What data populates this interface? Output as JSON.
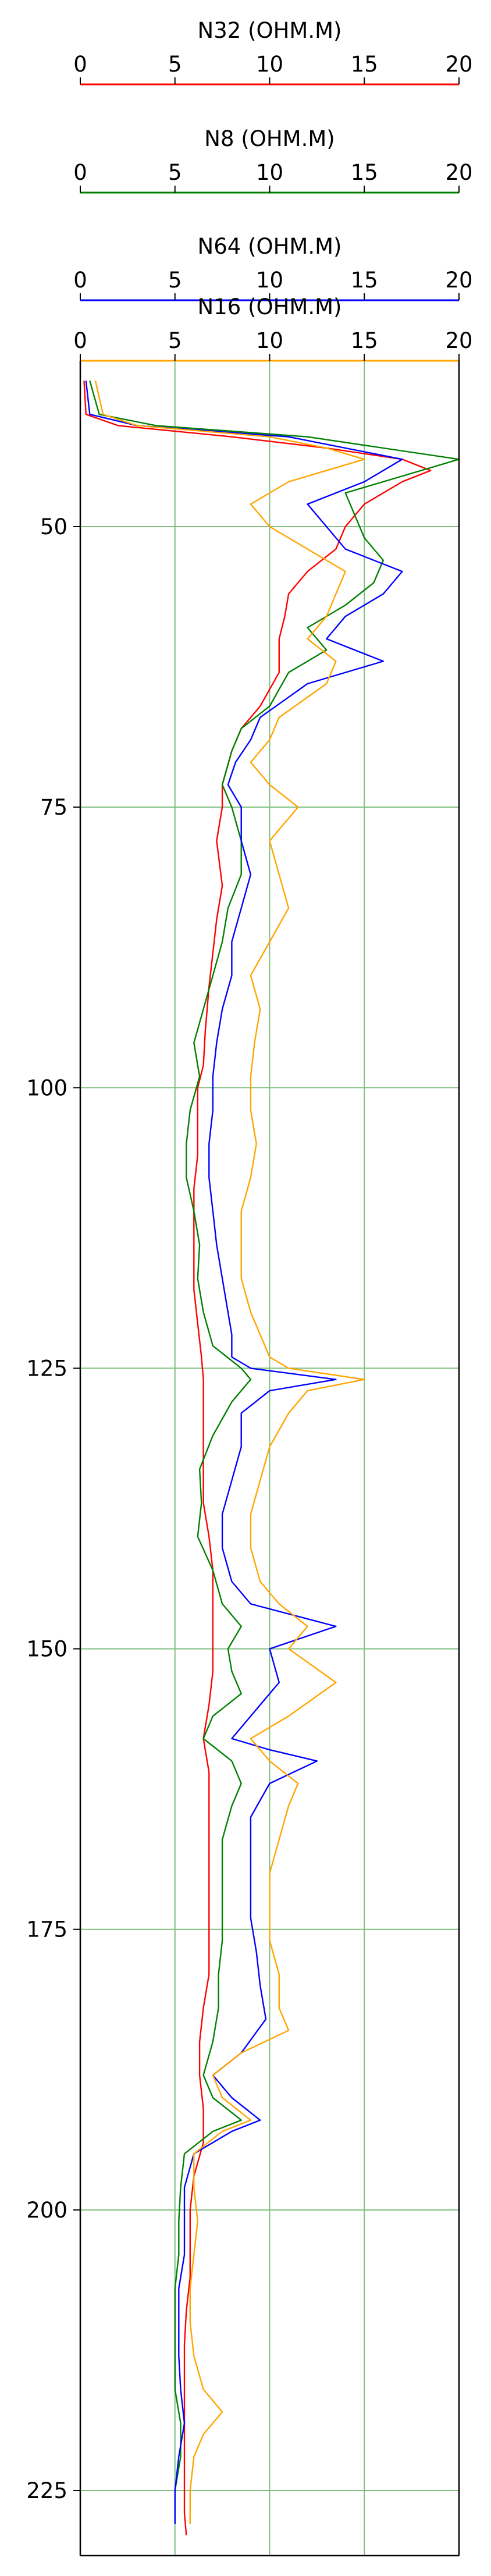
{
  "chart_data": {
    "type": "line",
    "orientation": "vertical-depth",
    "y_axis": {
      "ticks": [
        50,
        75,
        100,
        125,
        150,
        175,
        200,
        225
      ],
      "ylim": [
        36,
        230
      ],
      "inverted": true
    },
    "x_axis": {
      "xlim": [
        0,
        20
      ],
      "ticks": [
        0,
        5,
        10,
        15,
        20
      ]
    },
    "grid": true,
    "grid_color": "#7fbf7f",
    "series": [
      {
        "name": "N32 (OHM.M)",
        "color": "#ff0000",
        "points": [
          [
            0.2,
            37
          ],
          [
            0.3,
            40
          ],
          [
            2,
            41
          ],
          [
            8,
            42
          ],
          [
            13,
            43
          ],
          [
            17,
            44
          ],
          [
            18.5,
            45
          ],
          [
            17,
            46
          ],
          [
            15,
            48
          ],
          [
            14,
            50
          ],
          [
            13.5,
            52
          ],
          [
            12,
            54
          ],
          [
            11,
            56
          ],
          [
            10.8,
            58
          ],
          [
            10.5,
            60
          ],
          [
            10.5,
            63
          ],
          [
            9.5,
            66
          ],
          [
            8.5,
            68
          ],
          [
            8,
            70
          ],
          [
            7.5,
            73
          ],
          [
            7.5,
            75
          ],
          [
            7.2,
            78
          ],
          [
            7.5,
            82
          ],
          [
            7.2,
            85
          ],
          [
            7,
            88
          ],
          [
            6.8,
            91
          ],
          [
            6.6,
            95
          ],
          [
            6.5,
            98
          ],
          [
            6.2,
            100
          ],
          [
            6.2,
            103
          ],
          [
            6.2,
            106
          ],
          [
            6,
            109
          ],
          [
            6,
            112
          ],
          [
            6,
            115
          ],
          [
            6,
            118
          ],
          [
            6.2,
            121
          ],
          [
            6.4,
            124
          ],
          [
            6.5,
            126
          ],
          [
            6.5,
            128
          ],
          [
            6.5,
            131
          ],
          [
            6.5,
            134
          ],
          [
            6.5,
            137
          ],
          [
            6.8,
            140
          ],
          [
            7,
            143
          ],
          [
            7,
            146
          ],
          [
            7,
            149
          ],
          [
            7,
            152
          ],
          [
            6.8,
            155
          ],
          [
            6.5,
            158
          ],
          [
            6.8,
            161
          ],
          [
            6.8,
            164
          ],
          [
            6.8,
            167
          ],
          [
            6.8,
            170
          ],
          [
            6.8,
            173
          ],
          [
            6.8,
            176
          ],
          [
            6.8,
            179
          ],
          [
            6.5,
            182
          ],
          [
            6.3,
            185
          ],
          [
            6.3,
            188
          ],
          [
            6.5,
            191
          ],
          [
            6.5,
            194
          ],
          [
            6,
            197
          ],
          [
            5.8,
            200
          ],
          [
            5.8,
            203
          ],
          [
            5.8,
            206
          ],
          [
            5.6,
            209
          ],
          [
            5.5,
            212
          ],
          [
            5.5,
            215
          ],
          [
            5.5,
            218
          ],
          [
            5.5,
            221
          ],
          [
            5.5,
            224
          ],
          [
            5.5,
            227
          ],
          [
            5.6,
            229
          ]
        ]
      },
      {
        "name": "N8 (OHM.M)",
        "color": "#008000",
        "points": [
          [
            0.5,
            37
          ],
          [
            1,
            40
          ],
          [
            4,
            41
          ],
          [
            12,
            42
          ],
          [
            16,
            43
          ],
          [
            20,
            44
          ],
          [
            18,
            45
          ],
          [
            14,
            47
          ],
          [
            14.5,
            49
          ],
          [
            15,
            51
          ],
          [
            16,
            53
          ],
          [
            15.5,
            55
          ],
          [
            14,
            57
          ],
          [
            12,
            59
          ],
          [
            13,
            61
          ],
          [
            11,
            63
          ],
          [
            10,
            66
          ],
          [
            8.5,
            68
          ],
          [
            8,
            70
          ],
          [
            7.5,
            73
          ],
          [
            8,
            75
          ],
          [
            8.5,
            78
          ],
          [
            8.5,
            81
          ],
          [
            7.8,
            84
          ],
          [
            7.5,
            87
          ],
          [
            7,
            90
          ],
          [
            6.5,
            93
          ],
          [
            6,
            96
          ],
          [
            6.3,
            99
          ],
          [
            5.8,
            102
          ],
          [
            5.6,
            105
          ],
          [
            5.6,
            108
          ],
          [
            6,
            111
          ],
          [
            6.3,
            114
          ],
          [
            6.2,
            117
          ],
          [
            6.5,
            120
          ],
          [
            7,
            123
          ],
          [
            8.5,
            125
          ],
          [
            9,
            126
          ],
          [
            8,
            128
          ],
          [
            7,
            131
          ],
          [
            6.3,
            134
          ],
          [
            6.4,
            137
          ],
          [
            6.2,
            140
          ],
          [
            7,
            143
          ],
          [
            7.5,
            146
          ],
          [
            8.5,
            148
          ],
          [
            7.8,
            150
          ],
          [
            8,
            152
          ],
          [
            8.5,
            154
          ],
          [
            7,
            156
          ],
          [
            6.5,
            158
          ],
          [
            8,
            160
          ],
          [
            8.5,
            162
          ],
          [
            8,
            164
          ],
          [
            7.5,
            167
          ],
          [
            7.5,
            170
          ],
          [
            7.5,
            173
          ],
          [
            7.5,
            176
          ],
          [
            7.3,
            179
          ],
          [
            7.3,
            182
          ],
          [
            7,
            185
          ],
          [
            6.5,
            188
          ],
          [
            7,
            190
          ],
          [
            8.5,
            192
          ],
          [
            7,
            193
          ],
          [
            5.5,
            195
          ],
          [
            5.3,
            198
          ],
          [
            5.2,
            201
          ],
          [
            5.2,
            204
          ],
          [
            5,
            207
          ],
          [
            5,
            210
          ],
          [
            5,
            213
          ],
          [
            5,
            216
          ],
          [
            5.3,
            219
          ],
          [
            5.3,
            222
          ],
          [
            5,
            225
          ],
          [
            5,
            228
          ]
        ]
      },
      {
        "name": "N64 (OHM.M)",
        "color": "#0000ff",
        "points": [
          [
            0.3,
            37
          ],
          [
            0.5,
            40
          ],
          [
            3,
            41
          ],
          [
            11,
            42
          ],
          [
            14,
            43
          ],
          [
            17,
            44
          ],
          [
            15,
            46
          ],
          [
            12,
            48
          ],
          [
            13,
            50
          ],
          [
            14,
            52
          ],
          [
            17,
            54
          ],
          [
            16,
            56
          ],
          [
            14,
            58
          ],
          [
            13,
            60
          ],
          [
            16,
            62
          ],
          [
            12,
            64
          ],
          [
            9.5,
            67
          ],
          [
            9,
            69
          ],
          [
            8.2,
            71
          ],
          [
            7.8,
            73
          ],
          [
            8.5,
            75
          ],
          [
            8.5,
            78
          ],
          [
            9,
            81
          ],
          [
            8.5,
            84
          ],
          [
            8,
            87
          ],
          [
            8,
            90
          ],
          [
            7.5,
            93
          ],
          [
            7.2,
            96
          ],
          [
            7,
            99
          ],
          [
            7,
            102
          ],
          [
            6.8,
            105
          ],
          [
            6.8,
            108
          ],
          [
            7,
            111
          ],
          [
            7.2,
            114
          ],
          [
            7.5,
            117
          ],
          [
            7.8,
            120
          ],
          [
            8,
            122
          ],
          [
            8,
            124
          ],
          [
            9,
            125
          ],
          [
            13.5,
            126
          ],
          [
            10,
            127
          ],
          [
            8.5,
            129
          ],
          [
            8.5,
            132
          ],
          [
            8,
            135
          ],
          [
            7.5,
            138
          ],
          [
            7.5,
            141
          ],
          [
            8,
            144
          ],
          [
            9,
            146
          ],
          [
            13.5,
            148
          ],
          [
            10,
            150
          ],
          [
            10.5,
            153
          ],
          [
            9,
            156
          ],
          [
            8,
            158
          ],
          [
            10,
            159
          ],
          [
            12.5,
            160
          ],
          [
            10,
            162
          ],
          [
            9,
            165
          ],
          [
            9,
            168
          ],
          [
            9,
            171
          ],
          [
            9,
            174
          ],
          [
            9.3,
            177
          ],
          [
            9.5,
            180
          ],
          [
            9.8,
            183
          ],
          [
            8.5,
            186
          ],
          [
            7,
            188
          ],
          [
            8,
            190
          ],
          [
            9.5,
            192
          ],
          [
            8,
            193
          ],
          [
            6,
            195
          ],
          [
            5.5,
            198
          ],
          [
            5.5,
            201
          ],
          [
            5.5,
            204
          ],
          [
            5.2,
            207
          ],
          [
            5.2,
            210
          ],
          [
            5.2,
            213
          ],
          [
            5.3,
            216
          ],
          [
            5.5,
            219
          ],
          [
            5.2,
            222
          ],
          [
            5,
            225
          ],
          [
            5,
            228
          ]
        ]
      },
      {
        "name": "N16 (OHM.M)",
        "color": "#ffa500",
        "points": [
          [
            0.8,
            37
          ],
          [
            1.2,
            40
          ],
          [
            3,
            41
          ],
          [
            10,
            42
          ],
          [
            13,
            43
          ],
          [
            15,
            44
          ],
          [
            11,
            46
          ],
          [
            9,
            48
          ],
          [
            10,
            50
          ],
          [
            12,
            52
          ],
          [
            14,
            54
          ],
          [
            13.5,
            56
          ],
          [
            13,
            58
          ],
          [
            12,
            60
          ],
          [
            13.5,
            62
          ],
          [
            13,
            64
          ],
          [
            10.5,
            67
          ],
          [
            10,
            69
          ],
          [
            9,
            71
          ],
          [
            10,
            73
          ],
          [
            11.5,
            75
          ],
          [
            10,
            78
          ],
          [
            10.5,
            81
          ],
          [
            11,
            84
          ],
          [
            10,
            87
          ],
          [
            9,
            90
          ],
          [
            9.5,
            93
          ],
          [
            9.2,
            96
          ],
          [
            9,
            99
          ],
          [
            9,
            102
          ],
          [
            9.3,
            105
          ],
          [
            9,
            108
          ],
          [
            8.5,
            111
          ],
          [
            8.5,
            114
          ],
          [
            8.5,
            117
          ],
          [
            9,
            120
          ],
          [
            9.5,
            122
          ],
          [
            10,
            124
          ],
          [
            11,
            125
          ],
          [
            15,
            126
          ],
          [
            12,
            127
          ],
          [
            11,
            129
          ],
          [
            10,
            132
          ],
          [
            9.5,
            135
          ],
          [
            9,
            138
          ],
          [
            9,
            141
          ],
          [
            9.5,
            144
          ],
          [
            10.5,
            146
          ],
          [
            12,
            148
          ],
          [
            11,
            150
          ],
          [
            13.5,
            153
          ],
          [
            11,
            156
          ],
          [
            9,
            158
          ],
          [
            10,
            160
          ],
          [
            11.5,
            162
          ],
          [
            11,
            164
          ],
          [
            10.5,
            167
          ],
          [
            10,
            170
          ],
          [
            10,
            173
          ],
          [
            10,
            176
          ],
          [
            10.5,
            179
          ],
          [
            10.5,
            182
          ],
          [
            11,
            184
          ],
          [
            8.5,
            186
          ],
          [
            7,
            188
          ],
          [
            7.5,
            190
          ],
          [
            9,
            192
          ],
          [
            7.5,
            193
          ],
          [
            6,
            195
          ],
          [
            6,
            198
          ],
          [
            6.2,
            201
          ],
          [
            6,
            204
          ],
          [
            5.8,
            207
          ],
          [
            5.8,
            210
          ],
          [
            6,
            213
          ],
          [
            6.5,
            216
          ],
          [
            7.5,
            218
          ],
          [
            6.5,
            220
          ],
          [
            6,
            222
          ],
          [
            5.8,
            225
          ],
          [
            5.8,
            228
          ]
        ]
      }
    ]
  }
}
